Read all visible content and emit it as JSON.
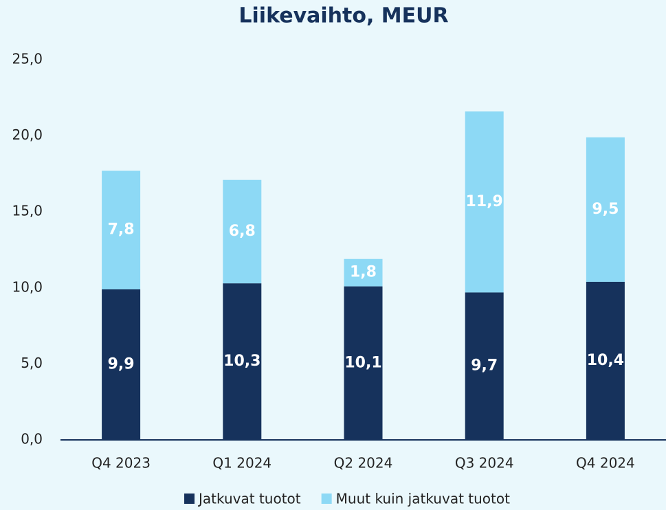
{
  "chart_data": {
    "type": "stacked_bar",
    "title": "Liikevaihto, MEUR",
    "categories": [
      "Q4 2023",
      "Q1 2024",
      "Q2 2024",
      "Q3 2024",
      "Q4 2024"
    ],
    "series": [
      {
        "name": "Jatkuvat tuotot",
        "color": "#16325c",
        "values": [
          9.9,
          10.3,
          10.1,
          9.7,
          10.4
        ],
        "value_labels": [
          "9,9",
          "10,3",
          "10,1",
          "9,7",
          "10,4"
        ]
      },
      {
        "name": "Muut kuin jatkuvat tuotot",
        "color": "#8dd9f5",
        "values": [
          7.8,
          6.8,
          1.8,
          11.9,
          9.5
        ],
        "value_labels": [
          "7,8",
          "6,8",
          "1,8",
          "11,9",
          "9,5"
        ]
      }
    ],
    "ylim": [
      0,
      25
    ],
    "yticks": [
      {
        "value": 0,
        "label": "0,0"
      },
      {
        "value": 5,
        "label": "5,0"
      },
      {
        "value": 10,
        "label": "10,0"
      },
      {
        "value": 15,
        "label": "15,0"
      },
      {
        "value": 20,
        "label": "20,0"
      },
      {
        "value": 25,
        "label": "25,0"
      }
    ],
    "grid": false,
    "legend": "bottom"
  }
}
